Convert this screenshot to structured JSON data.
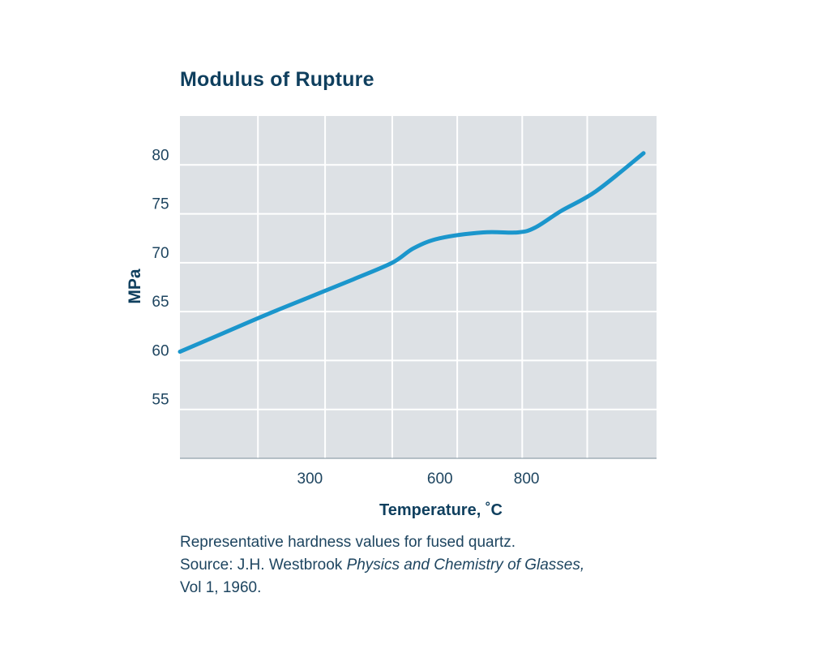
{
  "chart_data": {
    "type": "line",
    "title": "Modulus of Rupture",
    "xlabel": "Temperature, ˚C",
    "ylabel": "MPa",
    "xlim": [
      0,
      1100
    ],
    "ylim": [
      50,
      85
    ],
    "xticks": [
      {
        "value": 300,
        "label": "300"
      },
      {
        "value": 600,
        "label": "600"
      },
      {
        "value": 800,
        "label": "800"
      }
    ],
    "xgrid": [
      180,
      335,
      490,
      640,
      790,
      940
    ],
    "yticks": [
      {
        "value": 55,
        "label": "55"
      },
      {
        "value": 60,
        "label": "60"
      },
      {
        "value": 65,
        "label": "65"
      },
      {
        "value": 70,
        "label": "70"
      },
      {
        "value": 75,
        "label": "75"
      },
      {
        "value": 80,
        "label": "80"
      }
    ],
    "grid": true,
    "series": [
      {
        "name": "Modulus of Rupture",
        "color": "#1b96cc",
        "x": [
          0,
          100,
          200,
          300,
          400,
          490,
          540,
          600,
          700,
          780,
          820,
          880,
          960,
          1070
        ],
        "y": [
          60.9,
          62.8,
          64.7,
          66.5,
          68.3,
          70.0,
          71.5,
          72.5,
          73.1,
          73.1,
          73.6,
          75.3,
          77.3,
          81.2
        ]
      }
    ],
    "colors": {
      "plot_background": "#dde1e5",
      "grid": "#ffffff",
      "axis_text": "#1e4560",
      "title": "#0f3f5e"
    }
  },
  "caption": {
    "line1": "Representative hardness values for fused quartz.",
    "line2_prefix": "Source: J.H. Westbrook ",
    "line2_italic": "Physics and Chemistry of Glasses,",
    "line3": "Vol 1, 1960."
  }
}
